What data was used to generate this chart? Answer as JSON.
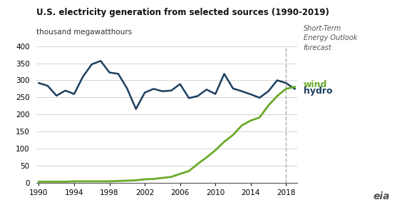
{
  "title": "U.S. electricity generation from selected sources (1990-2019)",
  "ylabel": "thousand megawatthours",
  "ylim": [
    0,
    400
  ],
  "yticks": [
    0,
    50,
    100,
    150,
    200,
    250,
    300,
    350,
    400
  ],
  "xlim": [
    1990,
    2019
  ],
  "xticks": [
    1990,
    1994,
    1998,
    2002,
    2006,
    2010,
    2014,
    2018
  ],
  "forecast_line_x": 2018,
  "forecast_label": "Short-Term\nEnergy Outlook\nforecast",
  "background_color": "#ffffff",
  "hydro_color": "#1c3f5e",
  "wind_color": "#6aaa2a",
  "hydro_label": "hydro",
  "wind_label": "wind",
  "hydro_data": {
    "years": [
      1990,
      1991,
      1992,
      1993,
      1994,
      1995,
      1996,
      1997,
      1998,
      1999,
      2000,
      2001,
      2002,
      2003,
      2004,
      2005,
      2006,
      2007,
      2008,
      2009,
      2010,
      2011,
      2012,
      2013,
      2014,
      2015,
      2016,
      2017,
      2018,
      2019
    ],
    "values": [
      292,
      284,
      255,
      270,
      260,
      311,
      347,
      357,
      323,
      319,
      276,
      216,
      264,
      275,
      268,
      270,
      289,
      248,
      254,
      273,
      260,
      319,
      276,
      268,
      259,
      249,
      268,
      300,
      292,
      275
    ]
  },
  "wind_data": {
    "years": [
      1990,
      1991,
      1992,
      1993,
      1994,
      1995,
      1996,
      1997,
      1998,
      1999,
      2000,
      2001,
      2002,
      2003,
      2004,
      2005,
      2006,
      2007,
      2008,
      2009,
      2010,
      2011,
      2012,
      2013,
      2014,
      2015,
      2016,
      2017,
      2018,
      2019
    ],
    "values": [
      3,
      3,
      3,
      3,
      4,
      4,
      4,
      4,
      4,
      5,
      6,
      7,
      10,
      11,
      14,
      17,
      26,
      34,
      55,
      74,
      95,
      120,
      140,
      168,
      182,
      191,
      226,
      254,
      275,
      281
    ]
  }
}
